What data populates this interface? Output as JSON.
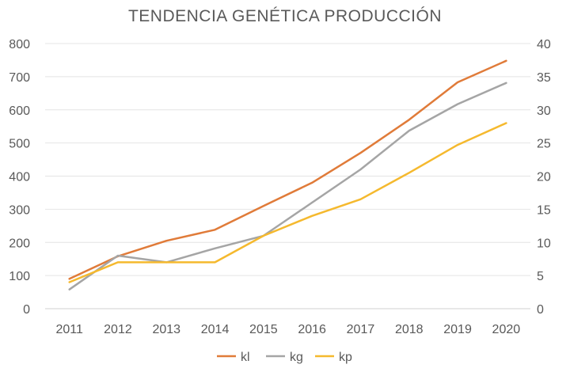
{
  "chart_data": {
    "type": "line",
    "title": "TENDENCIA GENÉTICA PRODUCCIÓN",
    "categories": [
      "2011",
      "2012",
      "2013",
      "2014",
      "2015",
      "2016",
      "2017",
      "2018",
      "2019",
      "2020"
    ],
    "y_left": {
      "min": 0,
      "max": 800,
      "step": 100
    },
    "y_right": {
      "min": 0,
      "max": 40,
      "step": 5
    },
    "grid": true,
    "legend_position": "bottom",
    "series": [
      {
        "name": "kl",
        "axis": "left",
        "color": "#E07B39",
        "values": [
          90,
          158,
          205,
          238,
          310,
          380,
          470,
          570,
          683,
          748
        ]
      },
      {
        "name": "kg",
        "axis": "left",
        "color": "#A5A5A5",
        "values": [
          58,
          160,
          140,
          182,
          220,
          320,
          420,
          537,
          617,
          681
        ]
      },
      {
        "name": "kp",
        "axis": "right",
        "color": "#F5B92E",
        "values": [
          4,
          7,
          7,
          7,
          11,
          14,
          16.5,
          20.5,
          24.7,
          28
        ]
      }
    ]
  }
}
